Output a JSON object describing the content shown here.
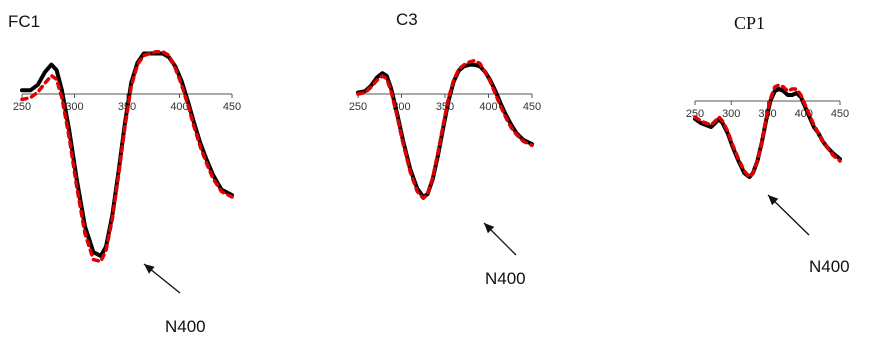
{
  "chart_data": [
    {
      "type": "line",
      "title": "FC1",
      "x_ticks": [
        250,
        300,
        350,
        400,
        450
      ],
      "xlim": [
        250,
        450
      ],
      "ylim": [
        -9,
        2.5
      ],
      "annotation": "N400",
      "series": [
        {
          "color": "#000000",
          "style": "solid",
          "x": [
            250,
            258,
            265,
            272,
            278,
            283,
            288,
            295,
            302,
            310,
            318,
            325,
            330,
            336,
            342,
            348,
            354,
            360,
            366,
            372,
            378,
            384,
            390,
            396,
            402,
            408,
            414,
            420,
            426,
            432,
            440,
            450
          ],
          "y": [
            0.2,
            0.2,
            0.5,
            1.2,
            1.6,
            1.3,
            0.2,
            -2.0,
            -4.6,
            -7.2,
            -8.6,
            -8.8,
            -8.3,
            -6.6,
            -4.2,
            -1.6,
            0.6,
            1.7,
            2.2,
            2.2,
            2.2,
            2.2,
            2.0,
            1.5,
            0.7,
            -0.4,
            -1.6,
            -2.7,
            -3.6,
            -4.4,
            -5.2,
            -5.5
          ]
        },
        {
          "color": "#e00000",
          "style": "dashed",
          "x": [
            250,
            258,
            265,
            272,
            278,
            283,
            288,
            295,
            302,
            310,
            318,
            325,
            330,
            336,
            342,
            348,
            354,
            360,
            366,
            372,
            378,
            384,
            390,
            396,
            402,
            408,
            414,
            420,
            426,
            432,
            440,
            450
          ],
          "y": [
            -0.3,
            -0.2,
            0.1,
            0.6,
            1.0,
            0.8,
            -0.2,
            -2.4,
            -5.0,
            -7.6,
            -9.0,
            -9.1,
            -8.5,
            -6.8,
            -4.4,
            -1.8,
            0.4,
            1.6,
            2.1,
            2.2,
            2.3,
            2.3,
            2.1,
            1.4,
            0.5,
            -0.6,
            -1.8,
            -2.9,
            -3.8,
            -4.6,
            -5.3,
            -5.6
          ]
        }
      ]
    },
    {
      "type": "line",
      "title": "C3",
      "x_ticks": [
        250,
        300,
        350,
        400,
        450
      ],
      "xlim": [
        250,
        450
      ],
      "ylim": [
        -9,
        2.5
      ],
      "annotation": "N400",
      "series": [
        {
          "color": "#000000",
          "style": "solid",
          "x": [
            250,
            258,
            265,
            272,
            278,
            283,
            288,
            295,
            302,
            310,
            318,
            325,
            330,
            336,
            342,
            348,
            354,
            360,
            366,
            372,
            378,
            384,
            390,
            396,
            402,
            408,
            414,
            420,
            426,
            432,
            440,
            450
          ],
          "y": [
            0.1,
            0.2,
            0.6,
            1.2,
            1.5,
            1.3,
            0.4,
            -1.4,
            -3.4,
            -5.4,
            -6.8,
            -7.4,
            -7.2,
            -6.1,
            -4.4,
            -2.4,
            -0.5,
            0.9,
            1.7,
            2.0,
            2.1,
            2.1,
            2.0,
            1.6,
            1.0,
            0.2,
            -0.7,
            -1.5,
            -2.2,
            -2.8,
            -3.3,
            -3.6
          ]
        },
        {
          "color": "#e00000",
          "style": "dashed",
          "x": [
            250,
            258,
            265,
            272,
            278,
            283,
            288,
            295,
            302,
            310,
            318,
            325,
            330,
            336,
            342,
            348,
            354,
            360,
            366,
            372,
            378,
            384,
            390,
            396,
            402,
            408,
            414,
            420,
            426,
            432,
            440,
            450
          ],
          "y": [
            0.0,
            0.1,
            0.5,
            1.0,
            1.3,
            1.1,
            0.2,
            -1.6,
            -3.6,
            -5.6,
            -7.0,
            -7.5,
            -7.2,
            -6.0,
            -4.2,
            -2.2,
            -0.3,
            1.0,
            1.8,
            2.1,
            2.3,
            2.4,
            2.2,
            1.6,
            0.9,
            0.0,
            -0.9,
            -1.7,
            -2.4,
            -2.9,
            -3.4,
            -3.7
          ]
        }
      ]
    },
    {
      "type": "line",
      "title": "CP1",
      "x_ticks": [
        250,
        300,
        350,
        400,
        450
      ],
      "xlim": [
        250,
        450
      ],
      "ylim": [
        -9,
        2.5
      ],
      "annotation": "N400",
      "series": [
        {
          "color": "#000000",
          "style": "solid",
          "x": [
            250,
            258,
            265,
            272,
            278,
            283,
            288,
            295,
            302,
            310,
            318,
            325,
            330,
            336,
            342,
            348,
            354,
            360,
            366,
            372,
            378,
            384,
            390,
            396,
            402,
            408,
            414,
            420,
            426,
            432,
            440,
            450
          ],
          "y": [
            -0.9,
            -1.1,
            -1.2,
            -1.3,
            -1.1,
            -0.9,
            -1.1,
            -1.6,
            -2.3,
            -3.0,
            -3.6,
            -3.8,
            -3.6,
            -3.0,
            -2.1,
            -1.0,
            0.0,
            0.5,
            0.6,
            0.5,
            0.3,
            0.3,
            0.4,
            0.2,
            -0.3,
            -0.8,
            -1.3,
            -1.6,
            -2.0,
            -2.3,
            -2.6,
            -2.9
          ]
        },
        {
          "color": "#e00000",
          "style": "dashed",
          "x": [
            250,
            258,
            265,
            272,
            278,
            283,
            288,
            295,
            302,
            310,
            318,
            325,
            330,
            336,
            342,
            348,
            354,
            360,
            366,
            372,
            378,
            384,
            390,
            396,
            402,
            408,
            414,
            420,
            426,
            432,
            440,
            450
          ],
          "y": [
            -0.8,
            -1.0,
            -1.1,
            -1.2,
            -1.0,
            -0.8,
            -1.0,
            -1.5,
            -2.2,
            -2.9,
            -3.5,
            -3.8,
            -3.6,
            -3.0,
            -2.1,
            -0.9,
            0.1,
            0.7,
            0.8,
            0.7,
            0.5,
            0.6,
            0.6,
            0.3,
            -0.2,
            -0.7,
            -1.2,
            -1.6,
            -2.0,
            -2.3,
            -2.7,
            -3.0
          ]
        }
      ]
    }
  ]
}
